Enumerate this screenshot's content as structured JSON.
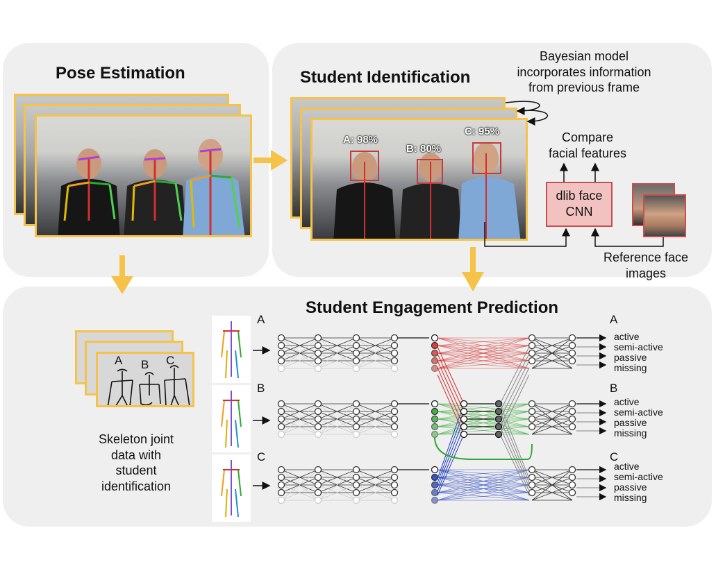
{
  "panels": {
    "pose": {
      "title": "Pose Estimation"
    },
    "ident": {
      "title": "Student Identification",
      "bayes_note": [
        "Bayesian model",
        "incorporates information",
        "from previous frame"
      ],
      "compare_note": [
        "Compare",
        "facial features"
      ],
      "cnn_label": [
        "dlib face",
        "CNN"
      ],
      "ref_label": [
        "Reference face",
        "images"
      ],
      "confidences": [
        "A: 98%",
        "B: 80%",
        "C: 95%"
      ]
    },
    "engage": {
      "title": "Student Engagement Prediction",
      "skeleton_caption": [
        "Skeleton joint",
        "data with",
        "student",
        "identification"
      ],
      "sketch_letters": [
        "A",
        "B",
        "C"
      ],
      "groups": [
        {
          "id": "A",
          "classes": [
            "active",
            "semi-active",
            "passive",
            "missing"
          ]
        },
        {
          "id": "B",
          "classes": [
            "active",
            "semi-active",
            "passive",
            "missing"
          ]
        },
        {
          "id": "C",
          "classes": [
            "active",
            "semi-active",
            "passive",
            "missing"
          ]
        }
      ]
    }
  },
  "colors": {
    "panel_bg": "#efefef",
    "frame_border": "#f5c24a",
    "arrow_yellow": "#f5c24a",
    "cnn_fill": "#f2c2c0",
    "cnn_border": "#c84f4f",
    "group_A": "#d62828",
    "group_B": "#2fa82f",
    "group_C": "#1f3fbf",
    "shared": "#888888"
  },
  "icons": [
    "person-photo",
    "skeleton-figure",
    "face-thumbnail",
    "neural-network"
  ]
}
